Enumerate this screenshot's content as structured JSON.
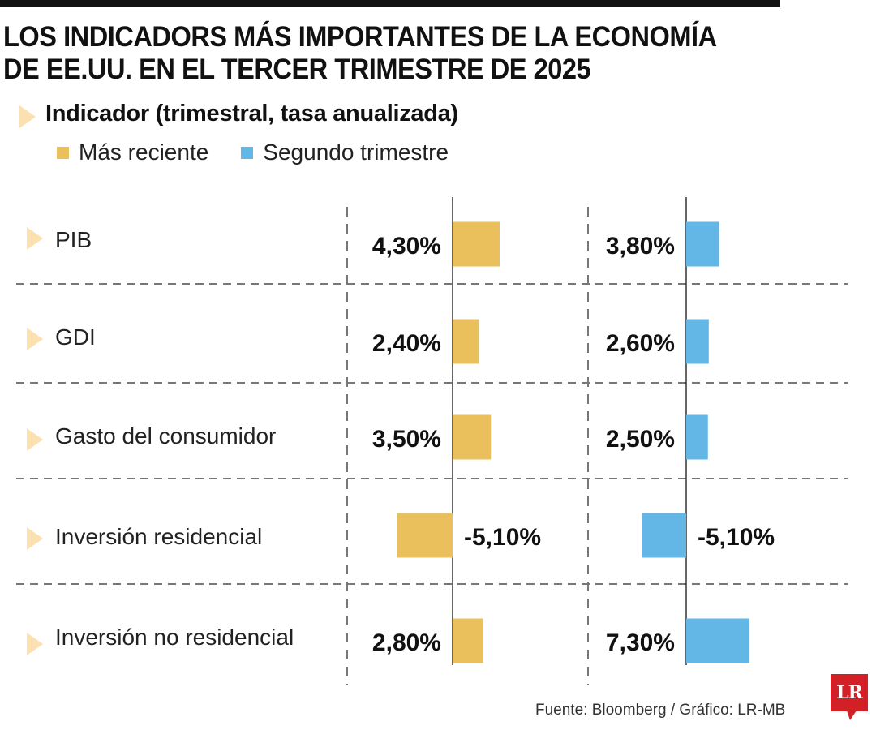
{
  "title_lines": [
    "LOS INDICADORS MÁS IMPORTANTES DE LA ECONOMÍA",
    "DE EE.UU. EN EL TERCER TRIMESTRE DE 2025"
  ],
  "subtitle": "Indicador (trimestral, tasa anualizada)",
  "legend": [
    {
      "label": "Más reciente",
      "color": "#e9c05c"
    },
    {
      "label": "Segundo trimestre",
      "color": "#62b7e6"
    }
  ],
  "source": "Fuente: Bloomberg / Gráfico: LR-MB",
  "logo_text": "LR",
  "colors": {
    "accent_triangle": "#fbe0b1",
    "logo_red": "#d32027",
    "grid": "#777777",
    "axis": "#333333"
  },
  "chart_data": {
    "type": "bar",
    "orientation": "horizontal",
    "title": "LOS INDICADORS MÁS IMPORTANTES DE LA ECONOMÍA DE EE.UU. EN EL TERCER TRIMESTRE DE 2025",
    "subtitle": "Indicador (trimestral, tasa anualizada)",
    "xlabel": "",
    "ylabel": "",
    "unit": "%",
    "categories": [
      "PIB",
      "GDI",
      "Gasto del consumidor",
      "Inversión residencial",
      "Inversión no residencial"
    ],
    "series": [
      {
        "name": "Más reciente",
        "color": "#e9c05c",
        "values": [
          4.3,
          2.4,
          3.5,
          -5.1,
          2.8
        ],
        "labels": [
          "4,30%",
          "2,40%",
          "3,50%",
          "-5,10%",
          "2,80%"
        ]
      },
      {
        "name": "Segundo trimestre",
        "color": "#62b7e6",
        "values": [
          3.8,
          2.6,
          2.5,
          -5.1,
          7.3
        ],
        "labels": [
          "3,80%",
          "2,60%",
          "2,50%",
          "-5,10%",
          "7,30%"
        ]
      }
    ],
    "grid": true,
    "legend_position": "top-left"
  }
}
